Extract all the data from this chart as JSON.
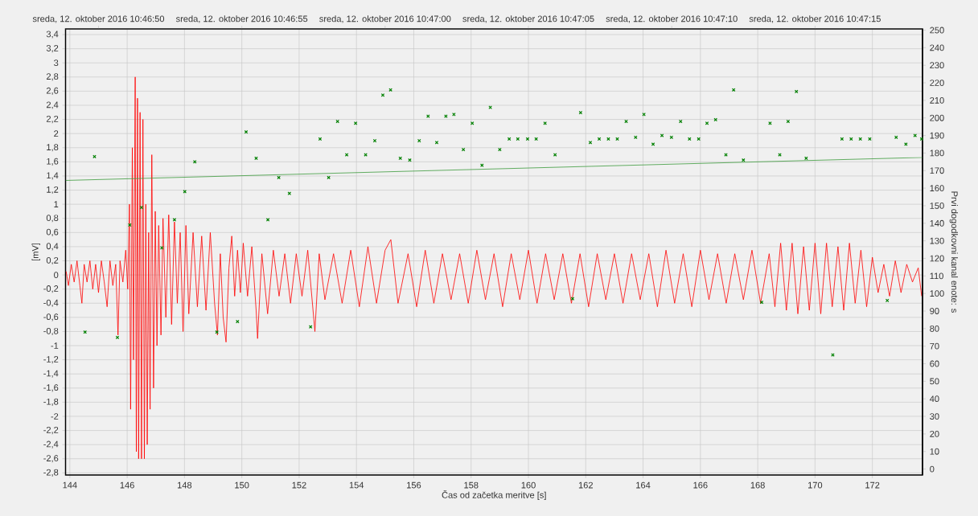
{
  "chart_data": {
    "type": "line",
    "xlabel": "Čas od začetka meritve [s]",
    "ylabel": "[mV]",
    "y2label": "Prvi dogodkovni kanal enote: s",
    "xlim": [
      143.85,
      173.75
    ],
    "xticks": [
      144,
      146,
      148,
      150,
      152,
      154,
      156,
      158,
      160,
      162,
      164,
      166,
      168,
      170,
      172
    ],
    "x2lim": [
      "2016-10-12T10:46:48.85",
      "2016-10-12T10:47:18.75"
    ],
    "x2ticks": [
      {
        "value": "2016-10-12T10:46:50",
        "label": "sreda, 12. oktober 2016 10:46:50"
      },
      {
        "value": "2016-10-12T10:46:55",
        "label": "sreda, 12. oktober 2016 10:46:55"
      },
      {
        "value": "2016-10-12T10:47:00",
        "label": "sreda, 12. oktober 2016 10:47:00"
      },
      {
        "value": "2016-10-12T10:47:05",
        "label": "sreda, 12. oktober 2016 10:47:05"
      },
      {
        "value": "2016-10-12T10:47:10",
        "label": "sreda, 12. oktober 2016 10:47:10"
      },
      {
        "value": "2016-10-12T10:47:15",
        "label": "sreda, 12. oktober 2016 10:47:15"
      }
    ],
    "ylim": [
      -2.83,
      3.48
    ],
    "yticks": [
      {
        "value": -2.8,
        "label": "-2,8"
      },
      {
        "value": -2.6,
        "label": "-2,6"
      },
      {
        "value": -2.4,
        "label": "-2,4"
      },
      {
        "value": -2.2,
        "label": "-2,2"
      },
      -2,
      {
        "value": -1.8,
        "label": "-1,8"
      },
      {
        "value": -1.6,
        "label": "-1,6"
      },
      {
        "value": -1.4,
        "label": "-1,4"
      },
      {
        "value": -1.2,
        "label": "-1,2"
      },
      -1,
      {
        "value": -0.8,
        "label": "-0,8"
      },
      {
        "value": -0.6,
        "label": "-0,6"
      },
      {
        "value": -0.4,
        "label": "-0,4"
      },
      {
        "value": -0.2,
        "label": "-0,2"
      },
      0,
      {
        "value": 0.2,
        "label": "0,2"
      },
      {
        "value": 0.4,
        "label": "0,4"
      },
      {
        "value": 0.6,
        "label": "0,6"
      },
      {
        "value": 0.8,
        "label": "0,8"
      },
      1,
      {
        "value": 1.2,
        "label": "1,2"
      },
      {
        "value": 1.4,
        "label": "1,4"
      },
      {
        "value": 1.6,
        "label": "1,6"
      },
      {
        "value": 1.8,
        "label": "1,8"
      },
      2,
      {
        "value": 2.2,
        "label": "2,2"
      },
      {
        "value": 2.4,
        "label": "2,4"
      },
      {
        "value": 2.6,
        "label": "2,6"
      },
      {
        "value": 2.8,
        "label": "2,8"
      },
      3,
      {
        "value": 3.2,
        "label": "3,2"
      },
      {
        "value": 3.4,
        "label": "3,4"
      }
    ],
    "y2lim": [
      -3.4,
      250.7
    ],
    "y2ticks": [
      0,
      10,
      20,
      30,
      40,
      50,
      60,
      70,
      80,
      90,
      100,
      110,
      120,
      130,
      140,
      150,
      160,
      170,
      180,
      190,
      200,
      210,
      220,
      230,
      240,
      250
    ],
    "grid": true,
    "series": [
      {
        "color": "#ff0000",
        "line_style": "solid",
        "x": [
          143.87,
          143.95,
          144.05,
          144.15,
          144.25,
          144.35,
          144.42,
          144.5,
          144.6,
          144.7,
          144.8,
          144.9,
          145.0,
          145.1,
          145.2,
          145.3,
          145.4,
          145.5,
          145.6,
          145.68,
          145.75,
          145.85,
          145.95,
          146.02,
          146.08,
          146.12,
          146.18,
          146.22,
          146.28,
          146.32,
          146.36,
          146.4,
          146.45,
          146.5,
          146.55,
          146.6,
          146.65,
          146.7,
          146.75,
          146.8,
          146.86,
          146.92,
          146.98,
          147.04,
          147.1,
          147.18,
          147.25,
          147.35,
          147.45,
          147.55,
          147.65,
          147.75,
          147.85,
          147.95,
          148.05,
          148.15,
          148.3,
          148.45,
          148.6,
          148.75,
          148.9,
          149.05,
          149.15,
          149.25,
          149.35,
          149.45,
          149.55,
          149.65,
          149.75,
          149.85,
          149.95,
          150.05,
          150.2,
          150.35,
          150.5,
          150.55,
          150.7,
          150.9,
          151.1,
          151.3,
          151.5,
          151.7,
          151.9,
          152.1,
          152.3,
          152.55,
          152.7,
          152.9,
          153.2,
          153.5,
          153.8,
          154.1,
          154.4,
          154.7,
          155.0,
          155.2,
          155.45,
          155.8,
          156.1,
          156.4,
          156.7,
          157.0,
          157.3,
          157.6,
          157.9,
          158.2,
          158.5,
          158.8,
          159.1,
          159.4,
          159.7,
          160.0,
          160.3,
          160.6,
          160.9,
          161.2,
          161.5,
          161.8,
          162.1,
          162.4,
          162.7,
          163.0,
          163.3,
          163.6,
          163.9,
          164.2,
          164.5,
          164.8,
          165.1,
          165.4,
          165.7,
          166.0,
          166.3,
          166.6,
          166.9,
          167.2,
          167.5,
          167.8,
          168.1,
          168.4,
          168.6,
          168.8,
          169.0,
          169.2,
          169.4,
          169.6,
          169.8,
          170.0,
          170.2,
          170.4,
          170.6,
          170.8,
          171.0,
          171.2,
          171.4,
          171.6,
          171.8,
          172.0,
          172.2,
          172.4,
          172.6,
          172.8,
          173.0,
          173.2,
          173.4,
          173.6,
          173.72
        ],
        "values": [
          0.05,
          -0.15,
          0.15,
          -0.1,
          0.2,
          -0.15,
          -0.4,
          0.15,
          -0.1,
          0.2,
          -0.2,
          0.15,
          -0.25,
          0.2,
          -0.1,
          -0.45,
          0.2,
          -0.15,
          0.15,
          -0.85,
          0.2,
          -0.1,
          0.35,
          -0.2,
          1.0,
          -1.9,
          1.8,
          -1.2,
          2.8,
          -2.5,
          2.5,
          -2.6,
          2.3,
          -2.6,
          2.2,
          -2.6,
          1.0,
          -2.4,
          0.6,
          -1.9,
          1.7,
          -1.6,
          0.9,
          -1.0,
          0.7,
          -0.85,
          0.8,
          -0.6,
          0.85,
          -0.7,
          0.75,
          -0.4,
          0.6,
          -0.8,
          0.7,
          -0.55,
          0.6,
          -0.45,
          0.55,
          -0.5,
          0.6,
          -0.4,
          -0.85,
          0.3,
          -0.6,
          -0.95,
          0.1,
          0.55,
          -0.3,
          0.35,
          -0.25,
          0.45,
          -0.3,
          0.4,
          -0.5,
          -0.9,
          0.3,
          -0.55,
          0.35,
          -0.3,
          0.3,
          -0.4,
          0.3,
          -0.3,
          0.35,
          -0.8,
          0.3,
          -0.35,
          0.3,
          -0.4,
          0.35,
          -0.45,
          0.4,
          -0.4,
          0.35,
          0.5,
          -0.4,
          0.3,
          -0.45,
          0.35,
          -0.4,
          0.3,
          -0.35,
          0.3,
          -0.4,
          0.35,
          -0.35,
          0.3,
          -0.45,
          0.3,
          -0.35,
          0.35,
          -0.4,
          0.3,
          -0.35,
          0.3,
          -0.4,
          0.3,
          -0.45,
          0.3,
          -0.35,
          0.3,
          -0.4,
          0.3,
          -0.35,
          0.3,
          -0.45,
          0.35,
          -0.4,
          0.3,
          -0.45,
          0.35,
          -0.35,
          0.3,
          -0.4,
          0.3,
          -0.35,
          0.35,
          -0.4,
          0.3,
          -0.45,
          0.45,
          -0.5,
          0.45,
          -0.55,
          0.4,
          -0.5,
          0.45,
          -0.55,
          0.45,
          -0.45,
          0.4,
          -0.5,
          0.45,
          -0.4,
          0.35,
          -0.45,
          0.25,
          -0.25,
          0.15,
          -0.3,
          0.2,
          -0.25,
          0.15,
          -0.1,
          0.1,
          -0.3
        ]
      },
      {
        "type": "scatter",
        "axis": "y2",
        "color": "#008000",
        "marker": "cross",
        "x": [
          144.53,
          144.86,
          145.66,
          146.09,
          146.5,
          147.21,
          147.65,
          148.01,
          148.36,
          149.13,
          149.85,
          150.15,
          150.5,
          150.91,
          151.29,
          151.66,
          152.4,
          152.73,
          153.03,
          153.34,
          153.66,
          153.97,
          154.32,
          154.64,
          154.92,
          155.19,
          155.53,
          155.86,
          156.19,
          156.5,
          156.8,
          157.12,
          157.4,
          157.73,
          158.04,
          158.38,
          158.67,
          159.0,
          159.33,
          159.63,
          159.97,
          160.27,
          160.58,
          160.93,
          161.54,
          161.82,
          162.16,
          162.47,
          162.79,
          163.1,
          163.41,
          163.74,
          164.03,
          164.35,
          164.66,
          164.99,
          165.31,
          165.62,
          165.94,
          166.23,
          166.53,
          166.89,
          167.16,
          167.5,
          168.14,
          168.43,
          168.77,
          169.06,
          169.35,
          169.69,
          170.62,
          170.94,
          171.26,
          171.58,
          171.91,
          172.52,
          172.83,
          173.17,
          173.49,
          173.72
        ],
        "values": [
          78,
          178,
          75,
          139,
          149,
          126,
          142,
          158,
          175,
          78,
          84,
          192,
          177,
          142,
          166,
          157,
          81,
          188,
          166,
          198,
          179,
          197,
          179,
          187,
          213,
          216,
          177,
          176,
          187,
          201,
          186,
          201,
          202,
          182,
          197,
          173,
          206,
          182,
          188,
          188,
          188,
          188,
          197,
          179,
          97,
          203,
          186,
          188,
          188,
          188,
          198,
          189,
          202,
          185,
          190,
          189,
          198,
          188,
          188,
          197,
          199,
          179,
          216,
          176,
          95,
          197,
          179,
          198,
          215,
          177,
          65,
          188,
          188,
          188,
          188,
          96,
          189,
          185,
          190,
          188
        ]
      },
      {
        "axis": "y2",
        "color": "#3c9a3c",
        "line_style": "solid",
        "x": [
          143.85,
          173.75
        ],
        "values": [
          164.4,
          177.5
        ]
      }
    ]
  }
}
